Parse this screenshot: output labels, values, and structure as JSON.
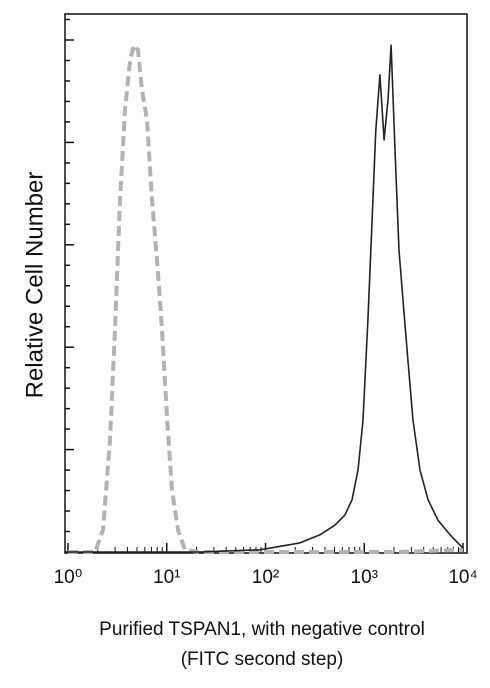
{
  "chart_data": {
    "type": "line",
    "ylabel": "Relative Cell Number",
    "xlabel": [
      "Purified TSPAN1, with negative control",
      "(FITC second step)"
    ],
    "xscale": "log",
    "xlim": [
      1,
      10000
    ],
    "xticks": [
      {
        "value": 1,
        "label": "10⁰"
      },
      {
        "value": 10,
        "label": "10¹"
      },
      {
        "value": 100,
        "label": "10²"
      },
      {
        "value": 1000,
        "label": "10³"
      },
      {
        "value": 10000,
        "label": "10⁴"
      }
    ],
    "ylim": [
      0,
      100
    ],
    "series": [
      {
        "color": "#b3b3b3",
        "dashed": true,
        "x": [
          1,
          1.88,
          2.26,
          2.66,
          2.99,
          3.36,
          3.78,
          4.25,
          4.66,
          5.11,
          5.61,
          6.31,
          7.09,
          7.97,
          8.95,
          10.1,
          11.3,
          13.0,
          15.3,
          21.7,
          223,
          2300,
          10000
        ],
        "values": [
          0,
          0,
          4.1,
          20.8,
          41.3,
          65.4,
          82.2,
          91.4,
          94.2,
          93.3,
          85.9,
          80.3,
          65.4,
          54.3,
          41.3,
          24.5,
          11.5,
          4.1,
          0.4,
          0,
          0,
          0,
          0.4
        ]
      },
      {
        "color": "#222222",
        "dashed": false,
        "x": [
          1,
          21.7,
          88,
          223,
          356,
          506,
          639,
          752,
          865,
          971,
          1090,
          1200,
          1310,
          1440,
          1590,
          1740,
          1870,
          2050,
          2250,
          2470,
          2770,
          3120,
          3670,
          4430,
          5580,
          7380,
          10000
        ],
        "values": [
          0,
          0,
          0.4,
          1.7,
          3.2,
          5.0,
          6.9,
          9.7,
          15.2,
          24.5,
          43.1,
          61.7,
          78.4,
          88.7,
          76.6,
          84.0,
          94.2,
          74.7,
          56.1,
          46.8,
          35.7,
          24.5,
          15.2,
          9.7,
          5.9,
          3.2,
          0.7
        ]
      }
    ]
  }
}
